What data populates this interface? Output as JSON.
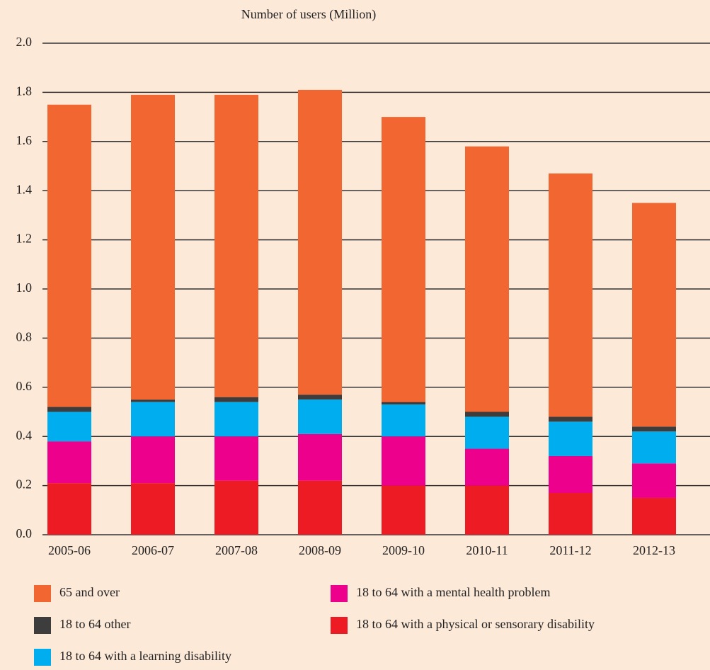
{
  "chart_data": {
    "type": "stacked_bar",
    "title": "Number of users (Million)",
    "categories": [
      "2005-06",
      "2006-07",
      "2007-08",
      "2008-09",
      "2009-10",
      "2010-11",
      "2011-12",
      "2012-13"
    ],
    "series": [
      {
        "name": "18 to 64 with a physical or sensorary disability",
        "color": "#ed1c24",
        "values": [
          0.21,
          0.21,
          0.22,
          0.22,
          0.2,
          0.2,
          0.17,
          0.15
        ]
      },
      {
        "name": "18 to 64 with a mental health problem",
        "color": "#ec008c",
        "values": [
          0.17,
          0.19,
          0.18,
          0.19,
          0.2,
          0.15,
          0.15,
          0.14
        ]
      },
      {
        "name": "18 to 64 with a learning disability",
        "color": "#00aeef",
        "values": [
          0.12,
          0.14,
          0.14,
          0.14,
          0.13,
          0.13,
          0.14,
          0.13
        ]
      },
      {
        "name": "18 to 64 other",
        "color": "#3d3d3d",
        "values": [
          0.02,
          0.01,
          0.02,
          0.02,
          0.01,
          0.02,
          0.02,
          0.02
        ]
      },
      {
        "name": "65 and over",
        "color": "#f26631",
        "values": [
          1.23,
          1.24,
          1.23,
          1.24,
          1.16,
          1.08,
          0.99,
          0.91
        ]
      }
    ],
    "ylim": [
      0,
      2
    ],
    "yticks": [
      {
        "value": 0,
        "label": "0.0"
      },
      0.2,
      0.4,
      0.6,
      0.8,
      {
        "value": 1,
        "label": "1.0"
      },
      1.2,
      1.4,
      1.6,
      1.8,
      {
        "value": 2,
        "label": "2.0"
      }
    ],
    "grid": true
  }
}
